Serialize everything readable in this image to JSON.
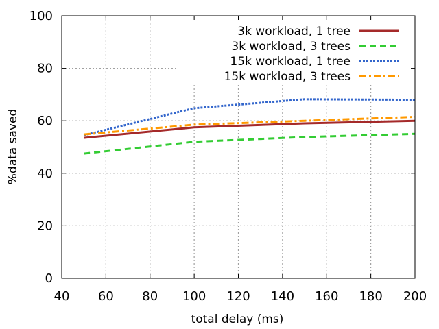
{
  "chart_data": {
    "type": "line",
    "title": "",
    "xlabel": "total delay (ms)",
    "ylabel": "%data saved",
    "xlim": [
      40,
      200
    ],
    "ylim": [
      0,
      100
    ],
    "xticks": [
      40,
      60,
      80,
      100,
      120,
      140,
      160,
      180,
      200
    ],
    "yticks": [
      0,
      20,
      40,
      60,
      80,
      100
    ],
    "grid": true,
    "legend_position": "top-right",
    "series": [
      {
        "name": "3k workload, 1 tree",
        "color": "#a52a2a",
        "style": "solid",
        "x": [
          50,
          100,
          150,
          200
        ],
        "values": [
          53.5,
          57.5,
          59.0,
          60.0
        ]
      },
      {
        "name": "3k workload, 3 trees",
        "color": "#33cc33",
        "style": "dashed",
        "x": [
          50,
          100,
          150,
          200
        ],
        "values": [
          47.5,
          52.0,
          53.8,
          55.0
        ]
      },
      {
        "name": "15k workload, 1 tree",
        "color": "#3366cc",
        "style": "dotted",
        "x": [
          50,
          100,
          150,
          200
        ],
        "values": [
          54.5,
          64.8,
          68.2,
          68.0
        ]
      },
      {
        "name": "15k workload, 3 trees",
        "color": "#ff9900",
        "style": "dashdot",
        "x": [
          50,
          100,
          150,
          200
        ],
        "values": [
          54.8,
          58.5,
          60.0,
          61.5
        ]
      }
    ]
  }
}
